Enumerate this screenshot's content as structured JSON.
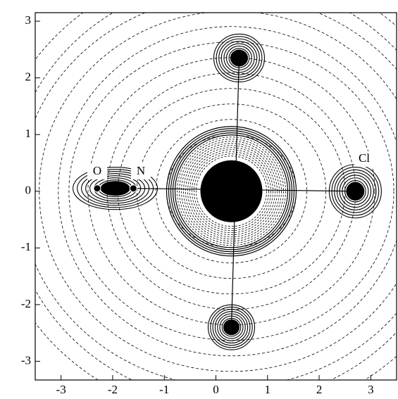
{
  "chart_data": {
    "type": "contour",
    "xlim": [
      -3.5,
      3.5
    ],
    "ylim": [
      -3.33,
      3.15
    ],
    "xticks": [
      -3,
      -2,
      -1,
      0,
      1,
      2,
      3
    ],
    "yticks": [
      -3,
      -2,
      -1,
      0,
      1,
      2,
      3
    ],
    "peaks": {
      "x": [
        0.45,
        0.3,
        0.3,
        2.7,
        -1.95
      ],
      "y": [
        2.35,
        -2.4,
        0,
        0,
        0.05
      ]
    },
    "atoms": {
      "x": [
        -2.3,
        -1.6
      ],
      "y": [
        0.05,
        0.05
      ]
    },
    "annotations": [
      "O",
      "N",
      "Cl"
    ]
  }
}
